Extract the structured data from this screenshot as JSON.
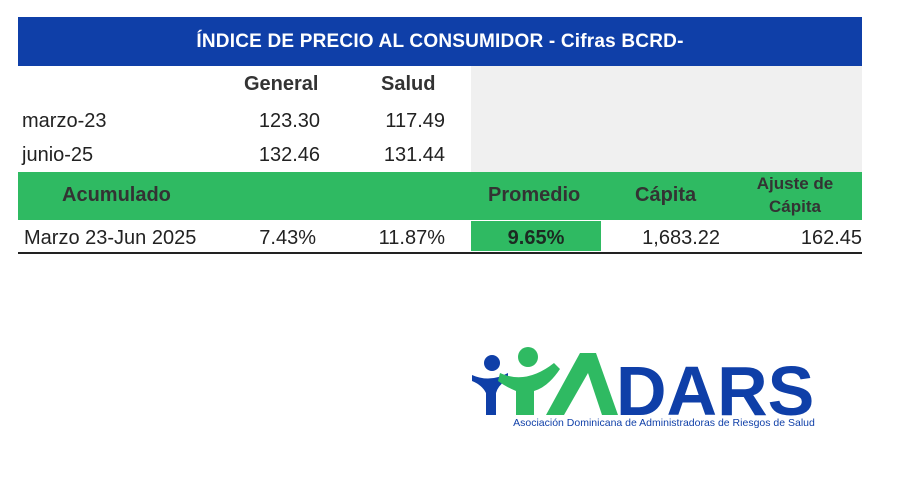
{
  "table": {
    "title": "ÍNDICE DE PRECIO AL CONSUMIDOR - Cifras BCRD-",
    "columns": {
      "general": "General",
      "salud": "Salud"
    },
    "rows": [
      {
        "label": "marzo-23",
        "general": "123.30",
        "salud": "117.49"
      },
      {
        "label": "junio-25",
        "general": "132.46",
        "salud": "131.44"
      }
    ],
    "summary_headers": {
      "acumulado": "Acumulado",
      "promedio": "Promedio",
      "capita": "Cápita",
      "ajuste_line1": "Ajuste de",
      "ajuste_line2": "Cápita"
    },
    "summary_row": {
      "label": "Marzo 23-Jun 2025",
      "general": "7.43%",
      "salud": "11.87%",
      "promedio": "9.65%",
      "capita": "1,683.22",
      "ajuste": "162.45"
    }
  },
  "logo": {
    "wordmark": "ADARS",
    "caption": "Asociación Dominicana de Administradoras de Riesgos de Salud",
    "colors": {
      "blue": "#0f3fa8",
      "green": "#2fba62"
    }
  }
}
